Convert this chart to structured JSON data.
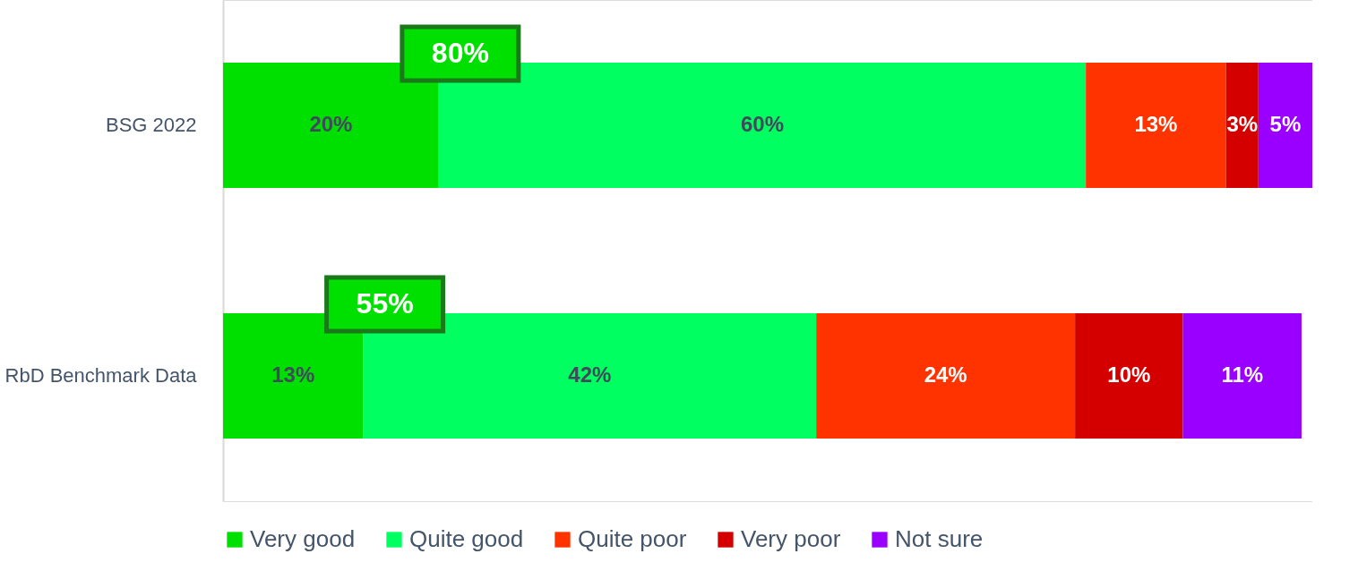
{
  "chart_data": {
    "type": "bar",
    "orientation": "horizontal",
    "stacked": true,
    "legend": "bottom",
    "categories": [
      "BSG 2022",
      "RbD Benchmark Data"
    ],
    "series": [
      {
        "name": "Very good",
        "color": "#00e000",
        "values": [
          20,
          13
        ],
        "value_labels": [
          "20%",
          "13%"
        ]
      },
      {
        "name": "Quite good",
        "color": "#00ff60",
        "values": [
          60,
          42
        ],
        "value_labels": [
          "60%",
          "42%"
        ]
      },
      {
        "name": "Quite poor",
        "color": "#ff3300",
        "values": [
          13,
          24
        ],
        "value_labels": [
          "13%",
          "24%"
        ]
      },
      {
        "name": "Very poor",
        "color": "#d40000",
        "values": [
          3,
          10
        ],
        "value_labels": [
          "3%",
          "10%"
        ]
      },
      {
        "name": "Not sure",
        "color": "#9900ff",
        "values": [
          5,
          11
        ],
        "value_labels": [
          "5%",
          "11%"
        ]
      }
    ],
    "annotations": [
      "80%",
      "55%"
    ]
  }
}
